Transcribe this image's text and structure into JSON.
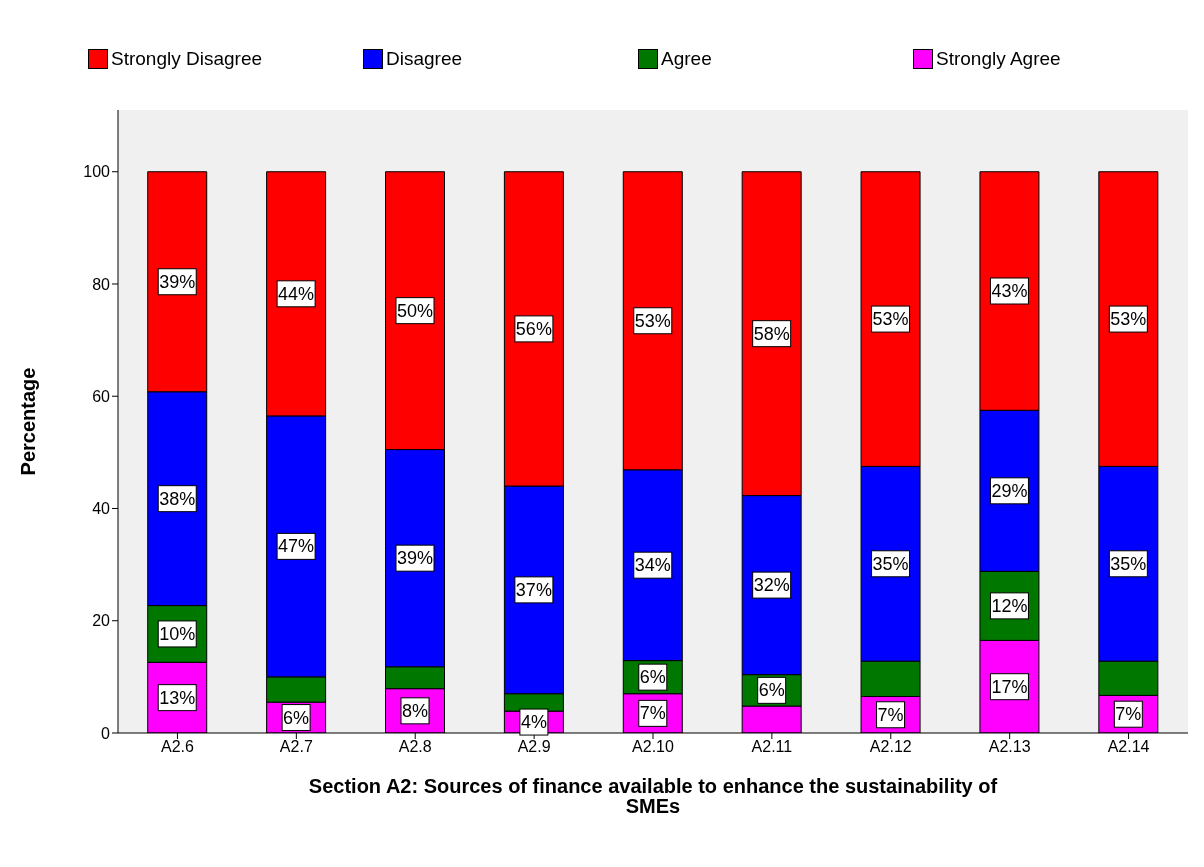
{
  "chart_data": {
    "type": "bar",
    "stacked": true,
    "xlabel": "Section A2: Sources of finance available to enhance the sustainability of SMEs",
    "ylabel": "Percentage",
    "categories": [
      "A2.6",
      "A2.7",
      "A2.8",
      "A2.9",
      "A2.10",
      "A2.11",
      "A2.12",
      "A2.13",
      "A2.14"
    ],
    "series": [
      {
        "name": "Strongly Agree",
        "color": "#ff00ff",
        "values": [
          12.6,
          5.5,
          7.9,
          3.9,
          7.0,
          4.8,
          6.5,
          16.5,
          6.7
        ],
        "value_labels": [
          "13%",
          "6%",
          "8%",
          "4%",
          "7%",
          null,
          "7%",
          "17%",
          "7%"
        ]
      },
      {
        "name": "Agree",
        "color": "#007800",
        "values": [
          10.1,
          4.5,
          3.9,
          3.1,
          5.9,
          5.6,
          6.3,
          12.3,
          6.1
        ],
        "value_labels": [
          "10%",
          null,
          null,
          null,
          "6%",
          "6%",
          null,
          "12%",
          null
        ]
      },
      {
        "name": "Disagree",
        "color": "#0000ff",
        "values": [
          38.1,
          46.5,
          38.7,
          37.0,
          34.0,
          31.9,
          34.7,
          28.7,
          34.7
        ],
        "value_labels": [
          "38%",
          "47%",
          "39%",
          "37%",
          "34%",
          "32%",
          "35%",
          "29%",
          "35%"
        ]
      },
      {
        "name": "Strongly Disagree",
        "color": "#ff0000",
        "values": [
          39.2,
          43.5,
          49.5,
          56.0,
          53.1,
          57.7,
          52.5,
          42.5,
          52.5
        ],
        "value_labels": [
          "39%",
          "44%",
          "50%",
          "56%",
          "53%",
          "58%",
          "53%",
          "43%",
          "53%"
        ]
      }
    ],
    "ylim": [
      0,
      111
    ],
    "yticks": [
      0,
      20,
      40,
      60,
      80,
      100
    ],
    "grid": false,
    "legend": "top"
  }
}
